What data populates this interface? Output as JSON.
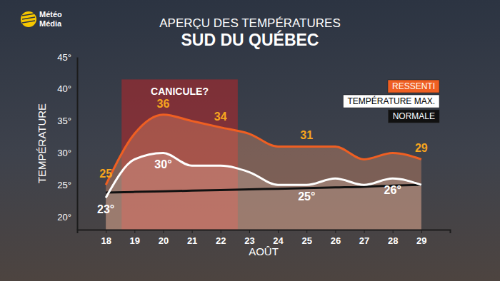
{
  "chart_data": {
    "type": "line",
    "brand": [
      "Météo",
      "Média"
    ],
    "title": "APERÇU DES TEMPÉRATURES",
    "subtitle": "SUD DU QUÉBEC",
    "y_label": "TEMPÉRATURE",
    "x_label": "AOÛT",
    "x": [
      18,
      19,
      20,
      21,
      22,
      23,
      24,
      25,
      26,
      27,
      28,
      29
    ],
    "xlim": [
      17,
      30
    ],
    "xticks": [
      18,
      19,
      20,
      21,
      22,
      23,
      24,
      25,
      26,
      27,
      28,
      29
    ],
    "ylim": [
      18,
      45
    ],
    "yticks": [
      {
        "value": 20,
        "label": "20°"
      },
      {
        "value": 25,
        "label": "25°"
      },
      {
        "value": 30,
        "label": "30°"
      },
      {
        "value": 35,
        "label": "35°"
      },
      {
        "value": 40,
        "label": "40°"
      },
      {
        "value": 45,
        "label": "45°"
      }
    ],
    "grid": false,
    "legend": "top-right",
    "data_labels": true,
    "annotations": [
      {
        "text": "CANICULE?",
        "x": [
          18.55,
          22.6
        ],
        "y": [
          18,
          41.5
        ]
      }
    ],
    "series": [
      {
        "name": "RESSENTI",
        "color": "#ef5f22",
        "values": [
          25,
          33,
          36,
          35,
          34,
          33,
          31,
          31,
          31,
          29,
          30,
          29
        ],
        "value_labels": [
          "25",
          null,
          "36",
          null,
          "34",
          null,
          null,
          "31",
          null,
          null,
          null,
          "29"
        ]
      },
      {
        "name": "TEMPÉRATURE MAX.",
        "color": "#ffffff",
        "values": [
          23,
          29,
          30,
          28,
          28,
          27,
          25,
          25,
          26,
          25,
          26,
          25
        ],
        "value_labels": [
          "23°",
          null,
          "30°",
          null,
          null,
          null,
          null,
          "25°",
          null,
          null,
          "26°",
          null
        ]
      },
      {
        "name": "NORMALE",
        "color": "#111111",
        "values": [
          23.8,
          23.9,
          24.0,
          24.1,
          24.2,
          24.3,
          24.4,
          24.5,
          24.6,
          24.7,
          24.9,
          25.0
        ]
      }
    ]
  }
}
